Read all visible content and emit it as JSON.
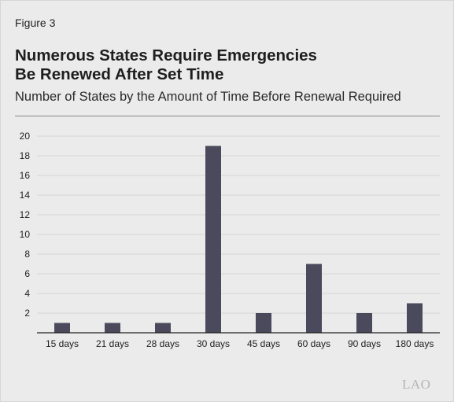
{
  "figure_label": "Figure 3",
  "title_line1": "Numerous States Require Emergencies",
  "title_line2": "Be Renewed After Set Time",
  "subtitle": "Number of States by the Amount of Time Before Renewal Required",
  "logo_text": "LAO",
  "colors": {
    "background": "#eaebea",
    "bar": "#4b4a5d",
    "grid": "#d6d6d6",
    "axis": "#222222"
  },
  "chart_data": {
    "type": "bar",
    "categories": [
      "15 days",
      "21 days",
      "28 days",
      "30 days",
      "45 days",
      "60 days",
      "90 days",
      "180 days"
    ],
    "values": [
      1,
      1,
      1,
      19,
      2,
      7,
      2,
      3
    ],
    "ylim": [
      0,
      20
    ],
    "yticks": [
      2,
      4,
      6,
      8,
      10,
      12,
      14,
      16,
      18,
      20
    ],
    "grid": true,
    "legend": "none"
  }
}
